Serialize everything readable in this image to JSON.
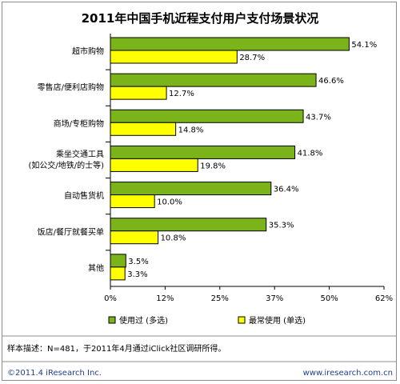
{
  "chart_data": {
    "type": "bar",
    "orientation": "horizontal",
    "title": "2011年中国手机近程支付用户支付场景状况",
    "categories": [
      "超市购物",
      "零售店/便利店购物",
      "商场/专柜购物",
      "乘坐交通工具\n(如公交/地铁/的士等)",
      "自动售货机",
      "饭店/餐厅就餐买单",
      "其他"
    ],
    "series": [
      {
        "name": "使用过 (多选)",
        "color": "#7bb41a",
        "values": [
          54.1,
          46.6,
          43.7,
          41.8,
          36.4,
          35.3,
          3.5
        ]
      },
      {
        "name": "最常使用 (单选)",
        "color": "#ffff00",
        "values": [
          28.7,
          12.7,
          14.8,
          19.8,
          10.0,
          10.8,
          3.3
        ]
      }
    ],
    "value_labels": [
      [
        "54.1%",
        "46.6%",
        "43.7%",
        "41.8%",
        "36.4%",
        "35.3%",
        "3.5%"
      ],
      [
        "28.7%",
        "12.7%",
        "14.8%",
        "19.8%",
        "10.0%",
        "10.8%",
        "3.3%"
      ]
    ],
    "xlim": [
      0,
      62
    ],
    "x_ticks": [
      0,
      12.4,
      24.8,
      37.2,
      49.6,
      62
    ],
    "x_tick_labels": [
      "0%",
      "12%",
      "25%",
      "37%",
      "50%",
      "62%"
    ],
    "grid": false,
    "legend_position": "bottom-left"
  },
  "footer": {
    "note": "样本描述：N=481，于2011年4月通过iClick社区调研所得。",
    "copyright": "©2011.4 iResearch Inc.",
    "website": "www.iresearch.com.cn"
  },
  "colors": {
    "series_used": "#7bb41a",
    "series_most": "#ffff00",
    "panel_border": "#8c8c8c",
    "brand": "#1f3f8f"
  }
}
